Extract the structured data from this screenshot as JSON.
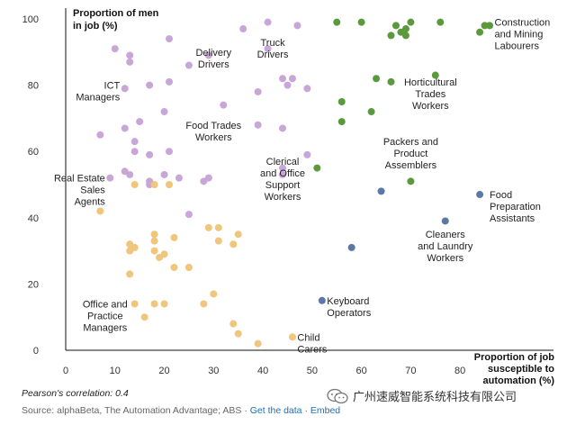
{
  "chart_data": {
    "type": "scatter",
    "title": "",
    "xlabel": [
      "Proportion of job",
      "susceptible to",
      "automation (%)"
    ],
    "ylabel": [
      "Proportion of men",
      "in job (%)"
    ],
    "xlim": [
      0,
      88
    ],
    "ylim": [
      0,
      100
    ],
    "xticks": [
      0,
      10,
      20,
      30,
      40,
      50,
      60,
      70,
      80
    ],
    "yticks": [
      0,
      20,
      40,
      60,
      80,
      100
    ],
    "grid": false,
    "colors": {
      "pink": "#c9a6d8",
      "orange": "#f0c57c",
      "green": "#5a9a3c",
      "blue": "#5b79a8"
    },
    "series": [
      {
        "color": "pink",
        "points": [
          [
            10,
            91
          ],
          [
            13,
            89
          ],
          [
            13,
            87
          ],
          [
            21,
            94
          ],
          [
            25,
            86
          ],
          [
            29,
            89
          ],
          [
            36,
            97
          ],
          [
            41,
            99
          ],
          [
            47,
            98
          ],
          [
            41,
            91
          ],
          [
            12,
            79
          ],
          [
            17,
            80
          ],
          [
            21,
            81
          ],
          [
            39,
            78
          ],
          [
            44,
            82
          ],
          [
            45,
            80
          ],
          [
            46,
            82
          ],
          [
            49,
            79
          ],
          [
            12,
            67
          ],
          [
            15,
            69
          ],
          [
            20,
            72
          ],
          [
            32,
            74
          ],
          [
            39,
            68
          ],
          [
            44,
            67
          ],
          [
            7,
            65
          ],
          [
            14,
            63
          ],
          [
            14,
            60
          ],
          [
            17,
            59
          ],
          [
            21,
            60
          ],
          [
            12,
            54
          ],
          [
            13,
            53
          ],
          [
            17,
            51
          ],
          [
            17,
            50
          ],
          [
            20,
            53
          ],
          [
            23,
            52
          ],
          [
            28,
            51
          ],
          [
            29,
            52
          ],
          [
            9,
            52
          ],
          [
            44,
            55
          ],
          [
            44,
            53
          ],
          [
            49,
            59
          ],
          [
            25,
            41
          ]
        ]
      },
      {
        "color": "orange",
        "points": [
          [
            7,
            42
          ],
          [
            14,
            50
          ],
          [
            18,
            50
          ],
          [
            21,
            50
          ],
          [
            29,
            37
          ],
          [
            31,
            37
          ],
          [
            35,
            35
          ],
          [
            18,
            35
          ],
          [
            18,
            33
          ],
          [
            22,
            34
          ],
          [
            31,
            33
          ],
          [
            34,
            32
          ],
          [
            13,
            32
          ],
          [
            13,
            30
          ],
          [
            14,
            31
          ],
          [
            18,
            30
          ],
          [
            20,
            29
          ],
          [
            19,
            28
          ],
          [
            22,
            25
          ],
          [
            25,
            25
          ],
          [
            13,
            23
          ],
          [
            14,
            14
          ],
          [
            18,
            14
          ],
          [
            20,
            14
          ],
          [
            28,
            14
          ],
          [
            30,
            17
          ],
          [
            16,
            10
          ],
          [
            34,
            8
          ],
          [
            35,
            5
          ],
          [
            39,
            2
          ],
          [
            46,
            4
          ]
        ]
      },
      {
        "color": "green",
        "points": [
          [
            55,
            99
          ],
          [
            60,
            99
          ],
          [
            67,
            98
          ],
          [
            68,
            96
          ],
          [
            69,
            95
          ],
          [
            69,
            97
          ],
          [
            70,
            99
          ],
          [
            66,
            95
          ],
          [
            76,
            99
          ],
          [
            84,
            96
          ],
          [
            85,
            98
          ],
          [
            86,
            98
          ],
          [
            63,
            82
          ],
          [
            66,
            81
          ],
          [
            75,
            83
          ],
          [
            56,
            75
          ],
          [
            62,
            72
          ],
          [
            56,
            69
          ],
          [
            51,
            55
          ],
          [
            70,
            51
          ]
        ]
      },
      {
        "color": "blue",
        "points": [
          [
            64,
            48
          ],
          [
            84,
            47
          ],
          [
            77,
            39
          ],
          [
            58,
            31
          ],
          [
            52,
            15
          ]
        ]
      }
    ],
    "annotations": [
      {
        "lines": [
          "Construction",
          "and Mining",
          "Labourers"
        ],
        "x": 87,
        "y": 99,
        "anchor": "start"
      },
      {
        "lines": [
          "Truck",
          "Drivers"
        ],
        "x": 42,
        "y": 93,
        "anchor": "middle"
      },
      {
        "lines": [
          "Delivery",
          "Drivers"
        ],
        "x": 30,
        "y": 90,
        "anchor": "middle"
      },
      {
        "lines": [
          "ICT",
          "Managers"
        ],
        "x": 11,
        "y": 80,
        "anchor": "end"
      },
      {
        "lines": [
          "Horticultural",
          "Trades",
          "Workers"
        ],
        "x": 74,
        "y": 81,
        "anchor": "middle"
      },
      {
        "lines": [
          "Food Trades",
          "Workers"
        ],
        "x": 30,
        "y": 68,
        "anchor": "middle"
      },
      {
        "lines": [
          "Packers and",
          "Product",
          "Assemblers"
        ],
        "x": 70,
        "y": 63,
        "anchor": "middle"
      },
      {
        "lines": [
          "Real Estate",
          "Sales",
          "Agents"
        ],
        "x": 8,
        "y": 52,
        "anchor": "end"
      },
      {
        "lines": [
          "Clerical",
          "and Office",
          "Support",
          "Workers"
        ],
        "x": 44,
        "y": 57,
        "anchor": "middle"
      },
      {
        "lines": [
          "Food",
          "Preparation",
          "Assistants"
        ],
        "x": 86,
        "y": 47,
        "anchor": "start"
      },
      {
        "lines": [
          "Cleaners",
          "and Laundry",
          "Workers"
        ],
        "x": 77,
        "y": 35,
        "anchor": "middle"
      },
      {
        "lines": [
          "Keyboard",
          "Operators"
        ],
        "x": 53,
        "y": 15,
        "anchor": "start"
      },
      {
        "lines": [
          "Office and",
          "Practice",
          "Managers"
        ],
        "x": 8,
        "y": 14,
        "anchor": "middle"
      },
      {
        "lines": [
          "Child",
          "Carers"
        ],
        "x": 47,
        "y": 4,
        "anchor": "start"
      }
    ]
  },
  "footer": {
    "correlation": "Pearson's correlation: 0.4",
    "source": "Source: alphaBeta, The Automation Advantage; ABS · ",
    "get_data_link": "Get the data",
    "separator": " · ",
    "embed_link": "Embed"
  },
  "watermark": {
    "text": "广州速威智能系统科技有限公司",
    "icon": "wechat-icon"
  }
}
